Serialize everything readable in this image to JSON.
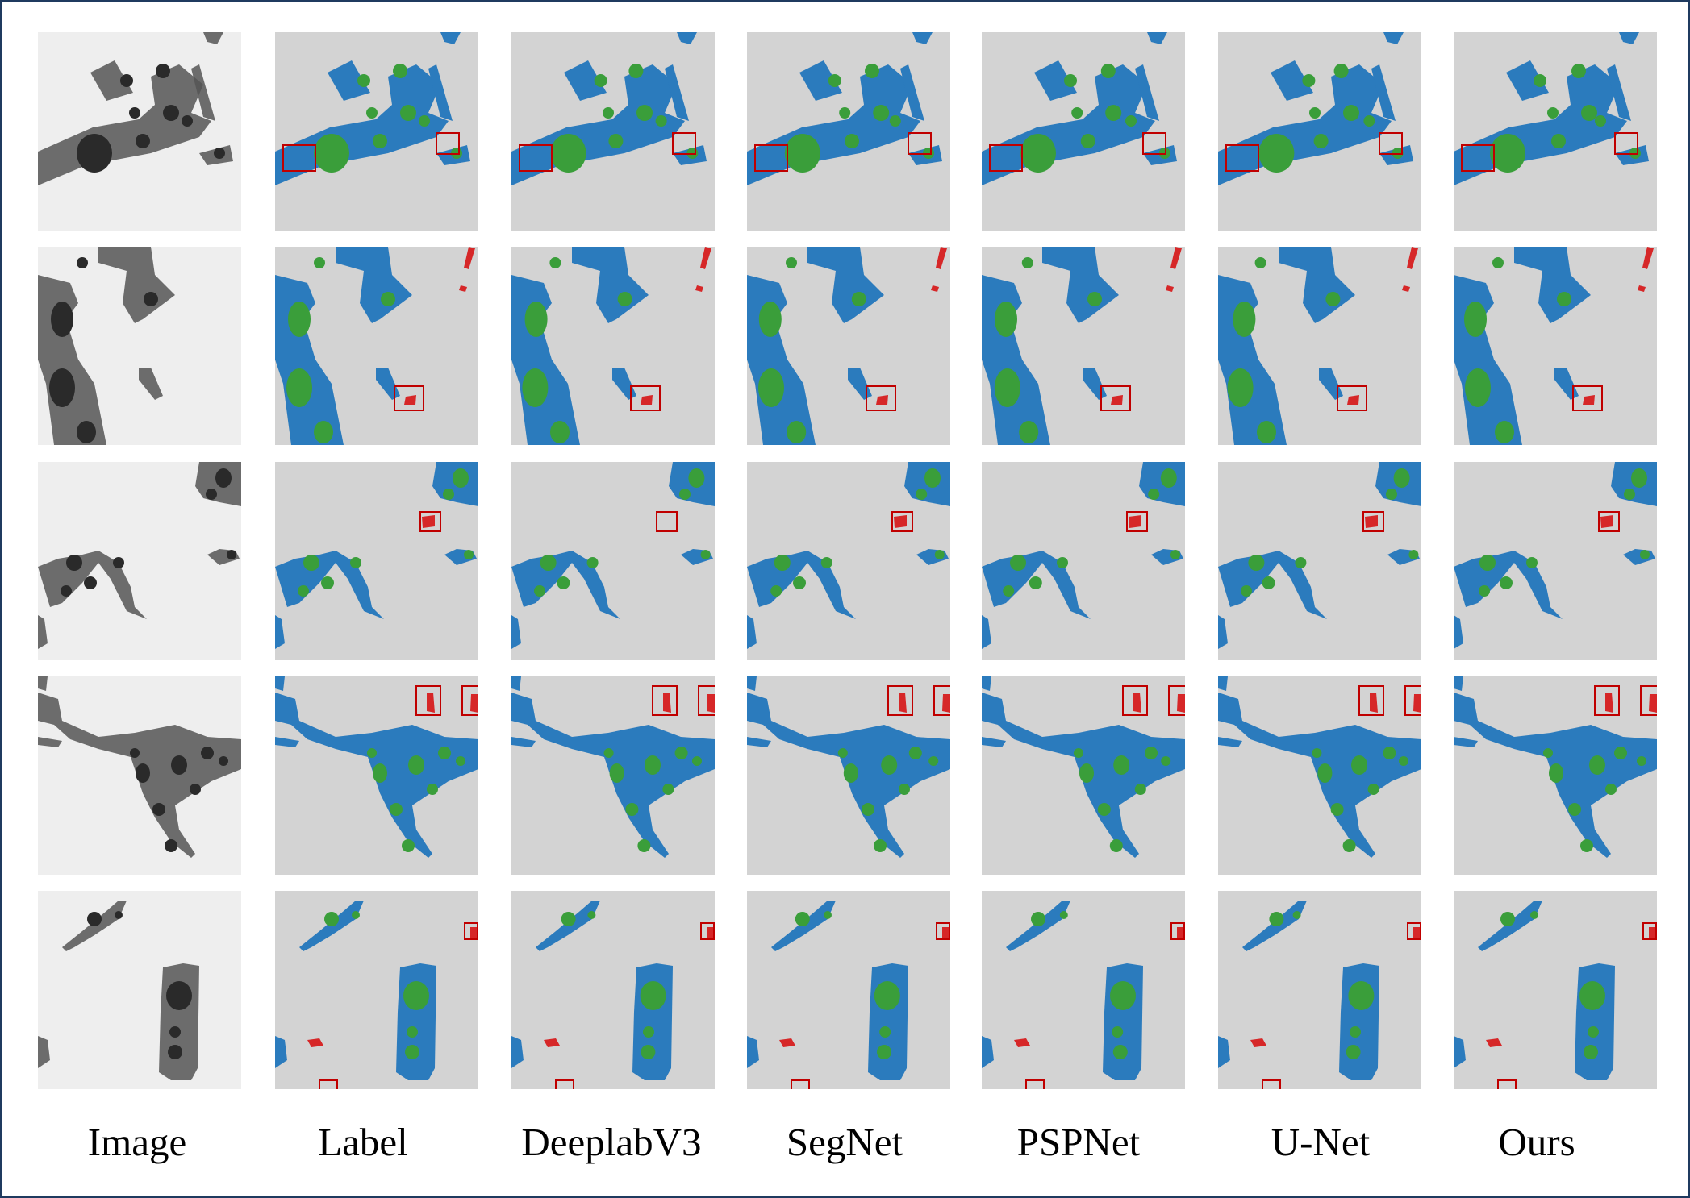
{
  "columns": [
    {
      "id": "image",
      "label": "Image"
    },
    {
      "id": "label",
      "label": "Label"
    },
    {
      "id": "deeplabv3",
      "label": "DeeplabV3"
    },
    {
      "id": "segnet",
      "label": "SegNet"
    },
    {
      "id": "pspnet",
      "label": "PSPNet"
    },
    {
      "id": "unet",
      "label": "U-Net"
    },
    {
      "id": "ours",
      "label": "Ours"
    }
  ],
  "rows": 5,
  "colors": {
    "background_class": "#d3d3d3",
    "class_blue": "#2b7bbd",
    "class_green": "#3a9e3a",
    "class_red": "#d62728",
    "highlight_box": "#c00000",
    "image_background": "#eeeeee",
    "image_dark": "#555555",
    "image_darker": "#2a2a2a",
    "frame_border": "#1f3a5f"
  }
}
